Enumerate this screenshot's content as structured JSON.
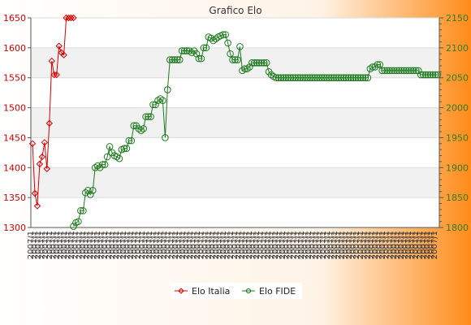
{
  "chart_data": {
    "type": "line",
    "title": "Grafico Elo",
    "background": {
      "gradient_from": "#ffffff",
      "gradient_to": "#ff8c1a"
    },
    "grid": true,
    "band_colors": [
      "#ffffff",
      "#f1f1f1"
    ],
    "y_left": {
      "ylim": [
        1300,
        1650
      ],
      "ticks": [
        1300,
        1350,
        1400,
        1450,
        1500,
        1550,
        1600,
        1650
      ],
      "tick_color": "#cc0000"
    },
    "y_right": {
      "ylim": [
        1800,
        2150
      ],
      "ticks": [
        1800,
        1850,
        1900,
        1950,
        2000,
        2050,
        2100,
        2150
      ],
      "tick_color": "#2e7d1e"
    },
    "x_label_text": "2007/1",
    "x_label_count": 110,
    "legend": {
      "placement": "bottom-center",
      "entries": [
        {
          "name": "Elo Italia",
          "color": "#d40000"
        },
        {
          "name": "Elo FIDE",
          "color": "#1d7a1d"
        }
      ]
    },
    "series": [
      {
        "name": "Elo Italia",
        "axis": "left",
        "color": "#d40000",
        "marker": "diamond",
        "values": [
          1440,
          1357,
          1336,
          1406,
          1418,
          1442,
          1398,
          1474,
          1578,
          1555,
          1555,
          1603,
          1592,
          1588,
          1650,
          1650,
          1650,
          1650
        ]
      },
      {
        "name": "Elo FIDE",
        "axis": "right",
        "color": "#1d7a1d",
        "marker": "circle",
        "offset": 17,
        "values": [
          1802,
          1808,
          1810,
          1828,
          1828,
          1858,
          1862,
          1855,
          1862,
          1900,
          1903,
          1900,
          1905,
          1905,
          1918,
          1935,
          1925,
          1920,
          1918,
          1915,
          1930,
          1932,
          1932,
          1945,
          1945,
          1970,
          1970,
          1965,
          1962,
          1965,
          1985,
          1985,
          1985,
          2005,
          2005,
          2012,
          2015,
          2012,
          1950,
          2030,
          2080,
          2080,
          2080,
          2080,
          2080,
          2095,
          2095,
          2095,
          2095,
          2092,
          2095,
          2090,
          2082,
          2082,
          2100,
          2100,
          2118,
          2116,
          2112,
          2115,
          2118,
          2120,
          2122,
          2122,
          2108,
          2090,
          2080,
          2080,
          2080,
          2102,
          2062,
          2065,
          2065,
          2068,
          2075,
          2075,
          2075,
          2075,
          2075,
          2075,
          2075,
          2060,
          2055,
          2052,
          2050,
          2050,
          2050,
          2050,
          2050,
          2050,
          2050,
          2050,
          2050,
          2050,
          2050,
          2050,
          2050,
          2050,
          2050,
          2050,
          2050,
          2050,
          2050,
          2050,
          2050,
          2050,
          2050,
          2050,
          2050,
          2050,
          2050,
          2050,
          2050,
          2050,
          2050,
          2050,
          2050,
          2050,
          2050,
          2050,
          2050,
          2050,
          2050,
          2065,
          2068,
          2068,
          2072,
          2072,
          2062,
          2062,
          2062,
          2062,
          2062,
          2062,
          2062,
          2062,
          2062,
          2062,
          2062,
          2062,
          2062,
          2062,
          2062,
          2062,
          2055,
          2055,
          2055,
          2055,
          2055,
          2055,
          2055,
          2055
        ]
      }
    ]
  }
}
